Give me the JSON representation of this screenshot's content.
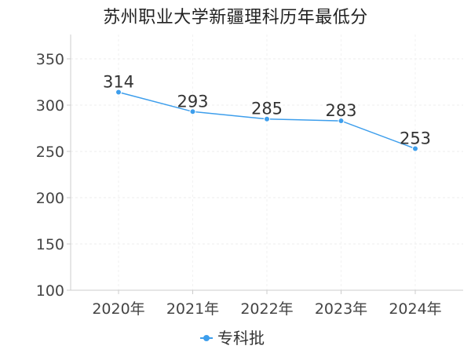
{
  "chart_data": {
    "type": "line",
    "title": "苏州职业大学新疆理科历年最低分",
    "xlabel": "",
    "ylabel": "",
    "categories": [
      "2020年",
      "2021年",
      "2022年",
      "2023年",
      "2024年"
    ],
    "series": [
      {
        "name": "专科批",
        "values": [
          314,
          293,
          285,
          283,
          253
        ],
        "color": "#3d9eec"
      }
    ],
    "ylim": [
      100,
      350
    ],
    "yticks": [
      100,
      150,
      200,
      250,
      300,
      350
    ],
    "grid": true,
    "legend_position": "bottom-center",
    "data_labels": true
  }
}
